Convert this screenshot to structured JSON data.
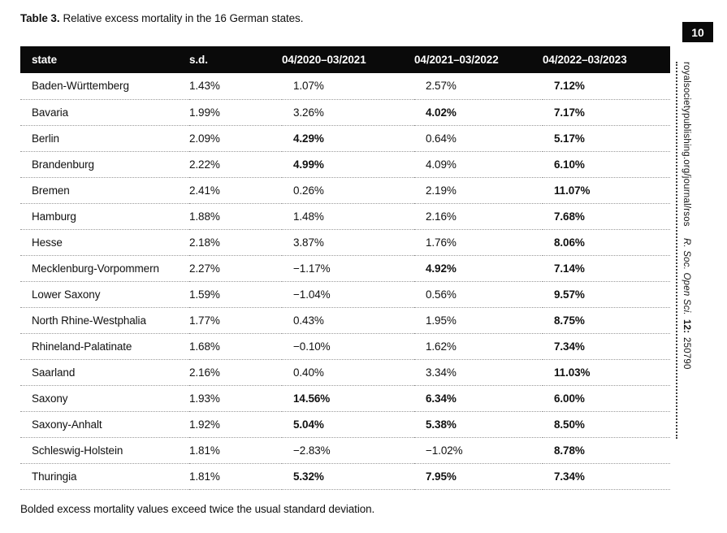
{
  "page": {
    "caption_label": "Table 3.",
    "caption_text": "Relative excess mortality in the 16 German states.",
    "footnote": "Bolded excess mortality values exceed twice the usual standard deviation.",
    "page_number": "10"
  },
  "sidebar": {
    "journal_url": "royalsocietypublishing.org/journal/rsos",
    "journal_name": "R. Soc. Open Sci.",
    "journal_volume": "12:",
    "journal_article": "250790"
  },
  "colors": {
    "header_band": "#0a0a0a",
    "text": "#111111",
    "row_separator": "#999999"
  },
  "table": {
    "columns": [
      "state",
      "s.d.",
      "04/2020–03/2021",
      "04/2021–03/2022",
      "04/2022–03/2023"
    ],
    "rows": [
      {
        "state": "Baden-Württemberg",
        "sd": "1.43%",
        "values": [
          "1.07%",
          "2.57%",
          "7.12%"
        ],
        "bold": [
          false,
          false,
          true
        ]
      },
      {
        "state": "Bavaria",
        "sd": "1.99%",
        "values": [
          "3.26%",
          "4.02%",
          "7.17%"
        ],
        "bold": [
          false,
          true,
          true
        ]
      },
      {
        "state": "Berlin",
        "sd": "2.09%",
        "values": [
          "4.29%",
          "0.64%",
          "5.17%"
        ],
        "bold": [
          true,
          false,
          true
        ]
      },
      {
        "state": "Brandenburg",
        "sd": "2.22%",
        "values": [
          "4.99%",
          "4.09%",
          "6.10%"
        ],
        "bold": [
          true,
          false,
          true
        ]
      },
      {
        "state": "Bremen",
        "sd": "2.41%",
        "values": [
          "0.26%",
          "2.19%",
          "11.07%"
        ],
        "bold": [
          false,
          false,
          true
        ]
      },
      {
        "state": "Hamburg",
        "sd": "1.88%",
        "values": [
          "1.48%",
          "2.16%",
          "7.68%"
        ],
        "bold": [
          false,
          false,
          true
        ]
      },
      {
        "state": "Hesse",
        "sd": "2.18%",
        "values": [
          "3.87%",
          "1.76%",
          "8.06%"
        ],
        "bold": [
          false,
          false,
          true
        ]
      },
      {
        "state": "Mecklenburg-Vorpommern",
        "sd": "2.27%",
        "values": [
          "−1.17%",
          "4.92%",
          "7.14%"
        ],
        "bold": [
          false,
          true,
          true
        ]
      },
      {
        "state": "Lower Saxony",
        "sd": "1.59%",
        "values": [
          "−1.04%",
          "0.56%",
          "9.57%"
        ],
        "bold": [
          false,
          false,
          true
        ]
      },
      {
        "state": "North Rhine-Westphalia",
        "sd": "1.77%",
        "values": [
          "0.43%",
          "1.95%",
          "8.75%"
        ],
        "bold": [
          false,
          false,
          true
        ]
      },
      {
        "state": "Rhineland-Palatinate",
        "sd": "1.68%",
        "values": [
          "−0.10%",
          "1.62%",
          "7.34%"
        ],
        "bold": [
          false,
          false,
          true
        ]
      },
      {
        "state": "Saarland",
        "sd": "2.16%",
        "values": [
          "0.40%",
          "3.34%",
          "11.03%"
        ],
        "bold": [
          false,
          false,
          true
        ]
      },
      {
        "state": "Saxony",
        "sd": "1.93%",
        "values": [
          "14.56%",
          "6.34%",
          "6.00%"
        ],
        "bold": [
          true,
          true,
          true
        ]
      },
      {
        "state": "Saxony-Anhalt",
        "sd": "1.92%",
        "values": [
          "5.04%",
          "5.38%",
          "8.50%"
        ],
        "bold": [
          true,
          true,
          true
        ]
      },
      {
        "state": "Schleswig-Holstein",
        "sd": "1.81%",
        "values": [
          "−2.83%",
          "−1.02%",
          "8.78%"
        ],
        "bold": [
          false,
          false,
          true
        ]
      },
      {
        "state": "Thuringia",
        "sd": "1.81%",
        "values": [
          "5.32%",
          "7.95%",
          "7.34%"
        ],
        "bold": [
          true,
          true,
          true
        ]
      }
    ]
  }
}
